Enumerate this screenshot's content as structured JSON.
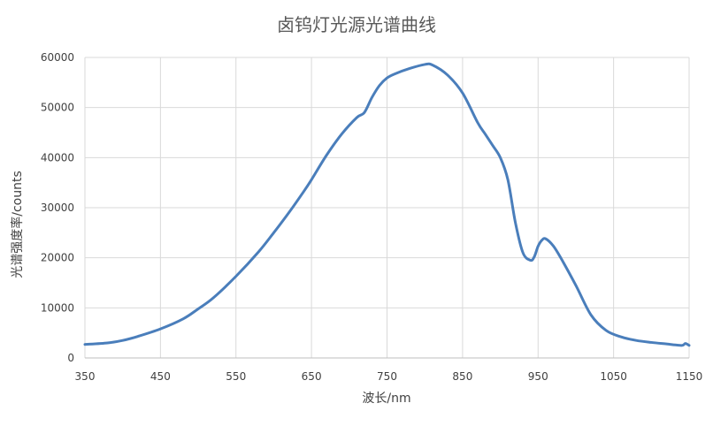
{
  "chart_data": {
    "type": "line",
    "title": "卤钨灯光源光谱曲线",
    "xlabel": "波长/nm",
    "ylabel": "光谱强度率/counts",
    "xlim": [
      350,
      1150
    ],
    "ylim": [
      0,
      60000
    ],
    "x_ticks": [
      "350",
      "450",
      "550",
      "650",
      "750",
      "850",
      "950",
      "1050",
      "1150"
    ],
    "y_ticks": [
      "0",
      "10000",
      "20000",
      "30000",
      "40000",
      "50000",
      "60000"
    ],
    "grid": true,
    "legend": "none",
    "series": [
      {
        "color": "#4a7ebb",
        "x": [
          350,
          380,
          400,
          420,
          450,
          480,
          500,
          520,
          550,
          580,
          600,
          620,
          640,
          650,
          670,
          690,
          710,
          720,
          730,
          740,
          750,
          760,
          780,
          800,
          810,
          830,
          850,
          870,
          880,
          890,
          900,
          910,
          920,
          930,
          940,
          945,
          950,
          955,
          960,
          970,
          980,
          1000,
          1020,
          1040,
          1060,
          1080,
          1100,
          1120,
          1140,
          1145,
          1150
        ],
        "y": [
          2700,
          3000,
          3500,
          4300,
          5800,
          7800,
          9800,
          12000,
          16300,
          21200,
          25000,
          29000,
          33300,
          35600,
          40500,
          44700,
          48000,
          49000,
          52000,
          54400,
          55900,
          56700,
          57800,
          58600,
          58500,
          56500,
          52900,
          47000,
          44700,
          42400,
          40000,
          35600,
          27000,
          21000,
          19500,
          20200,
          22300,
          23500,
          23800,
          22400,
          20000,
          14500,
          8600,
          5500,
          4200,
          3500,
          3100,
          2800,
          2500,
          2900,
          2500
        ]
      }
    ]
  }
}
